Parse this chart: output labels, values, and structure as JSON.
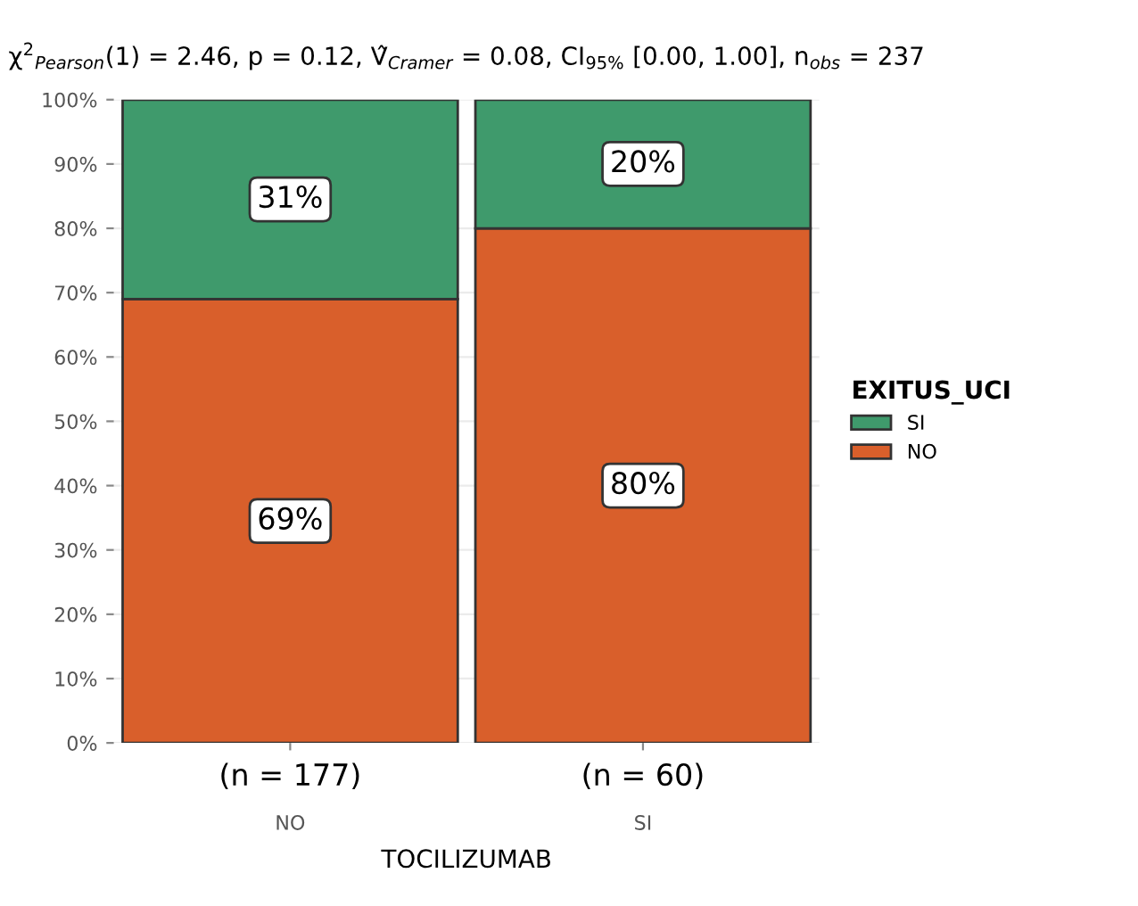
{
  "chart_data": {
    "type": "bar",
    "stacked": true,
    "title": "χ$^{2}$$_{Pearson}$(1) = 2.46, p = 0.12, V̂$_{Cramer}$ = 0.08, CI$_{95%}$ [0.00, 1.00], n$_{obs}$ = 237",
    "xlabel": "TOCILIZUMAB",
    "legend_title": "EXITUS_UCI",
    "categories": [
      "NO",
      "SI"
    ],
    "annotations": [
      "(n = 177)",
      "(n = 60)"
    ],
    "series": [
      {
        "name": "NO",
        "color": "#d95f2b",
        "values": [
          69,
          80
        ],
        "value_labels": [
          "69%",
          "80%"
        ]
      },
      {
        "name": "SI",
        "color": "#3f9a6c",
        "values": [
          31,
          20
        ],
        "value_labels": [
          "31%",
          "20%"
        ]
      }
    ],
    "ylim": [
      0,
      100
    ],
    "yticks": [
      {
        "value": 0,
        "label": "0%"
      },
      {
        "value": 10,
        "label": "10%"
      },
      {
        "value": 20,
        "label": "20%"
      },
      {
        "value": 30,
        "label": "30%"
      },
      {
        "value": 40,
        "label": "40%"
      },
      {
        "value": 50,
        "label": "50%"
      },
      {
        "value": 60,
        "label": "60%"
      },
      {
        "value": 70,
        "label": "70%"
      },
      {
        "value": 80,
        "label": "80%"
      },
      {
        "value": 90,
        "label": "90%"
      },
      {
        "value": 100,
        "label": "100%"
      }
    ],
    "grid": "y",
    "legend": "right"
  }
}
